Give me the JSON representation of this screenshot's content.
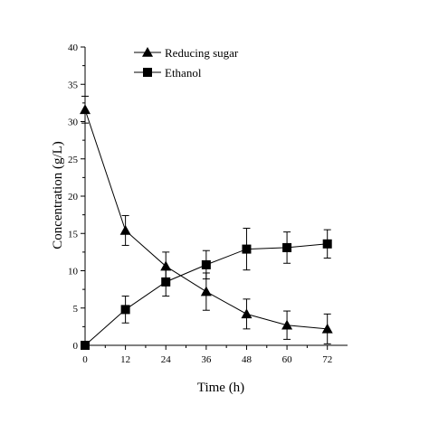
{
  "chart_data": {
    "type": "line",
    "title": "",
    "xlabel": "Time (h)",
    "ylabel": "Concentration (g/L)",
    "xlim": [
      0,
      78
    ],
    "ylim": [
      0,
      40
    ],
    "x_ticks": [
      0,
      12,
      24,
      36,
      48,
      60,
      72
    ],
    "y_ticks": [
      0,
      5,
      10,
      15,
      20,
      25,
      30,
      35,
      40
    ],
    "grid": false,
    "legend_position": "top-center",
    "x": [
      0,
      12,
      24,
      36,
      48,
      60,
      72
    ],
    "series": [
      {
        "name": "Reducing sugar",
        "marker": "triangle",
        "values": [
          31.6,
          15.4,
          10.6,
          7.2,
          4.2,
          2.7,
          2.2
        ],
        "errors": [
          1.8,
          2.0,
          1.9,
          2.5,
          2.0,
          1.9,
          2.0
        ]
      },
      {
        "name": "Ethanol",
        "marker": "square",
        "values": [
          0,
          4.8,
          8.5,
          10.8,
          12.9,
          13.1,
          13.6
        ],
        "errors": [
          0,
          1.8,
          1.9,
          1.9,
          2.8,
          2.1,
          1.9
        ]
      }
    ]
  }
}
